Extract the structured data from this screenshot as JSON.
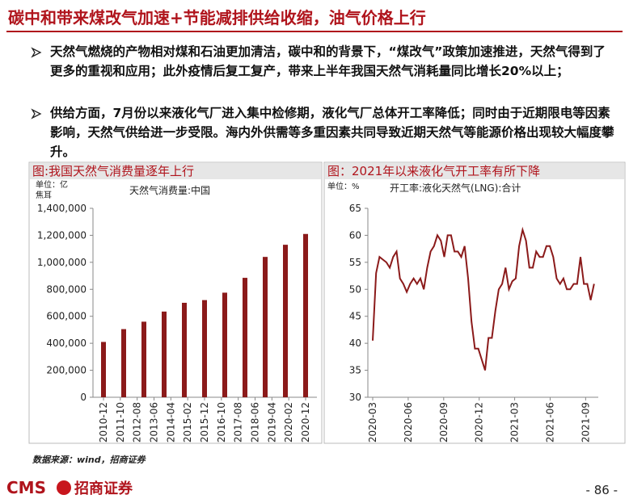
{
  "title": "碳中和带来煤改气加速+节能减排供给收缩，油气价格上行",
  "bullets": [
    "天然气燃烧的产物相对煤和石油更加清洁，碳中和的背景下，“煤改气”政策加速推进，天然气得到了更多的重视和应用；此外疫情后复工复产，带来上半年我国天然气消耗量同比增长20%以上；",
    "供给方面，7月份以来液化气厂进入集中检修期，液化气厂总体开工率降低；同时由于近期限电等因素影响，天然气供给进一步受限。海内外供需等多重因素共同导致近期天然气等能源价格出现较大幅度攀升。"
  ],
  "chart_data": [
    {
      "type": "bar",
      "title": "图:我国天然气消费量逐年上行",
      "unit": [
        "单位：亿",
        "焦耳"
      ],
      "series": [
        {
          "name": "天然气消费量:中国",
          "color": "#8b1a1a",
          "x": [
            "2010-12",
            "2011-12",
            "2012-12",
            "2013-12",
            "2014-12",
            "2015-12",
            "2016-12",
            "2017-12",
            "2018-12",
            "2019-12",
            "2020-12"
          ],
          "values": [
            410000,
            505000,
            560000,
            635000,
            700000,
            720000,
            775000,
            885000,
            1040000,
            1130000,
            1210000
          ]
        }
      ],
      "xlim": [
        "2010-12",
        "2020-12"
      ],
      "xticks": [
        "2010-12",
        "2011-10",
        "2012-08",
        "2013-06",
        "2014-04",
        "2015-02",
        "2015-12",
        "2016-10",
        "2017-08",
        "2018-06",
        "2019-04",
        "2020-02",
        "2020-12"
      ],
      "ylim": [
        0,
        1400000
      ],
      "yticks": [
        0,
        {
          "value": 200000,
          "label": "200,000"
        },
        {
          "value": 400000,
          "label": "400,000"
        },
        {
          "value": 600000,
          "label": "600,000"
        },
        {
          "value": 800000,
          "label": "800,000"
        },
        {
          "value": 1000000,
          "label": "1,000,000"
        },
        {
          "value": 1200000,
          "label": "1,200,000"
        },
        {
          "value": 1400000,
          "label": "1,400,000"
        }
      ]
    },
    {
      "type": "line",
      "title": "图：2021年以来液化气开工率有所下降",
      "unit": [
        "单位：%"
      ],
      "series": [
        {
          "name": "开工率:液化天然气(LNG):合计",
          "color": "#8b1a1a",
          "values": [
            40.5,
            53,
            56,
            55.5,
            55,
            54,
            56,
            57,
            52,
            51,
            49.5,
            51,
            52,
            51,
            52,
            50,
            54,
            57,
            58,
            60,
            59,
            56,
            60,
            60,
            57,
            57,
            56,
            58,
            52,
            44,
            39,
            39,
            37,
            35,
            41,
            41,
            46,
            50,
            51,
            54,
            50,
            51.5,
            52,
            58,
            61,
            59,
            54,
            54,
            57,
            56,
            56,
            58,
            58,
            56,
            52,
            51,
            52,
            50,
            50,
            51,
            51,
            56,
            51,
            51,
            48,
            51
          ]
        }
      ],
      "xlim": [
        "2020-03",
        "2021-10"
      ],
      "xticks": [
        "2020-03",
        "2020-06",
        "2020-09",
        "2020-12",
        "2021-03",
        "2021-06",
        "2021-09"
      ],
      "ylim": [
        30,
        65
      ],
      "yticks": [
        30,
        35,
        40,
        45,
        50,
        55,
        60,
        65
      ]
    }
  ],
  "source": "数据来源：wind，招商证券",
  "logo": [
    "CMS",
    "招商证券"
  ],
  "page_number": "- 86 -"
}
